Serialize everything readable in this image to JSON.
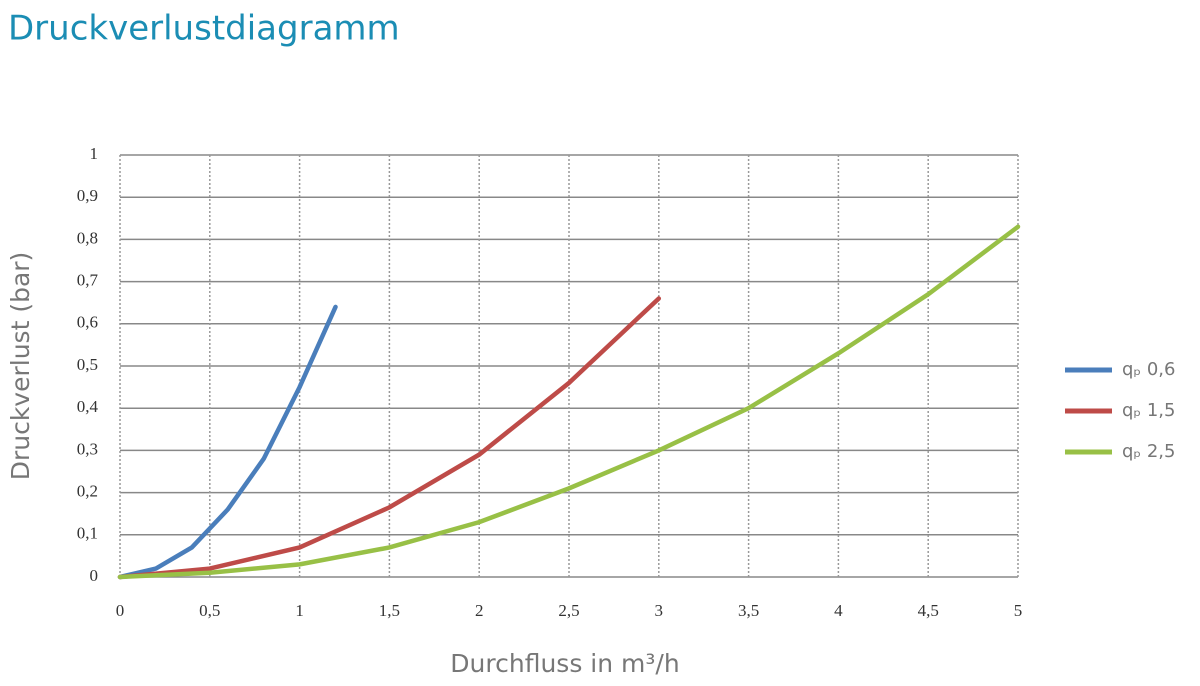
{
  "chart_data": {
    "type": "line",
    "title": "Druckverlustdiagramm",
    "x_label": "Durchfluss in m³/h",
    "y_label": "Druckverlust (bar)",
    "xlim": [
      0,
      5
    ],
    "ylim": [
      0,
      1
    ],
    "xticks": [
      0,
      {
        "value": 0.5,
        "label": "0,5"
      },
      1,
      {
        "value": 1.5,
        "label": "1,5"
      },
      2,
      {
        "value": 2.5,
        "label": "2,5"
      },
      3,
      {
        "value": 3.5,
        "label": "3,5"
      },
      4,
      {
        "value": 4.5,
        "label": "4,5"
      },
      5
    ],
    "yticks": [
      0,
      {
        "value": 0.1,
        "label": "0,1"
      },
      {
        "value": 0.2,
        "label": "0,2"
      },
      {
        "value": 0.3,
        "label": "0,3"
      },
      {
        "value": 0.4,
        "label": "0,4"
      },
      {
        "value": 0.5,
        "label": "0,5"
      },
      {
        "value": 0.6,
        "label": "0,6"
      },
      {
        "value": 0.7,
        "label": "0,7"
      },
      {
        "value": 0.8,
        "label": "0,8"
      },
      {
        "value": 0.9,
        "label": "0,9"
      },
      1
    ],
    "grid": true,
    "legend": "right",
    "series": [
      {
        "name": "qₚ 0,6",
        "color": "#4a7ebb",
        "x": [
          0,
          0.2,
          0.4,
          0.6,
          0.8,
          1.0,
          1.2
        ],
        "values": [
          0,
          0.02,
          0.07,
          0.16,
          0.28,
          0.45,
          0.64
        ]
      },
      {
        "name": "qₚ 1,5",
        "color": "#be4b48",
        "x": [
          0,
          0.5,
          1,
          1.5,
          2,
          2.5,
          3
        ],
        "values": [
          0,
          0.02,
          0.07,
          0.165,
          0.29,
          0.46,
          0.66
        ]
      },
      {
        "name": "qₚ 2,5",
        "color": "#98c046",
        "x": [
          0,
          0.5,
          1,
          1.5,
          2,
          2.5,
          3,
          3.5,
          4,
          4.5,
          5
        ],
        "values": [
          0,
          0.01,
          0.03,
          0.07,
          0.13,
          0.21,
          0.3,
          0.4,
          0.53,
          0.67,
          0.83
        ]
      }
    ]
  }
}
